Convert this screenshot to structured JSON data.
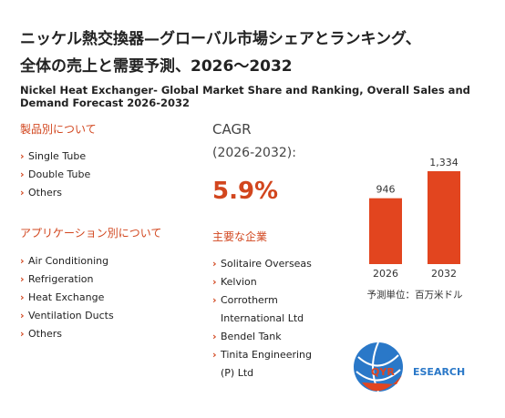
{
  "header": {
    "title_lines": [
      "ニッケル熱交換器—グローバル市場シェアとランキング、",
      "全体の売上と需要予測、2026～2032"
    ],
    "subtitle": "Nickel Heat Exchanger- Global Market Share and Ranking, Overall Sales and Demand Forecast 2026-2032"
  },
  "segments": {
    "product_heading": "製品別について",
    "products": [
      "Single Tube",
      "Double Tube",
      "Others"
    ],
    "application_heading": "アプリケーション別について",
    "applications": [
      "Air Conditioning",
      "Refrigeration",
      "Heat Exchange",
      "Ventilation Ducts",
      "Others"
    ]
  },
  "cagr": {
    "label": "CAGR",
    "period": "(2026-2032):",
    "value": "5.9%"
  },
  "companies": {
    "heading": "主要な企業",
    "items": [
      "Solitaire Overseas",
      "Kelvion",
      "Corrotherm International Ltd",
      "Bendel Tank",
      "Tinita Engineering (P) Ltd"
    ]
  },
  "chart_data": {
    "type": "bar",
    "categories": [
      "2026",
      "2032"
    ],
    "values": [
      946,
      1334
    ],
    "value_labels": [
      "946",
      "1,334"
    ],
    "color": "#e2451f",
    "note": "予測単位：百万米ドル"
  },
  "logo": {
    "mark": "QYR",
    "word": "ESEARCH"
  }
}
